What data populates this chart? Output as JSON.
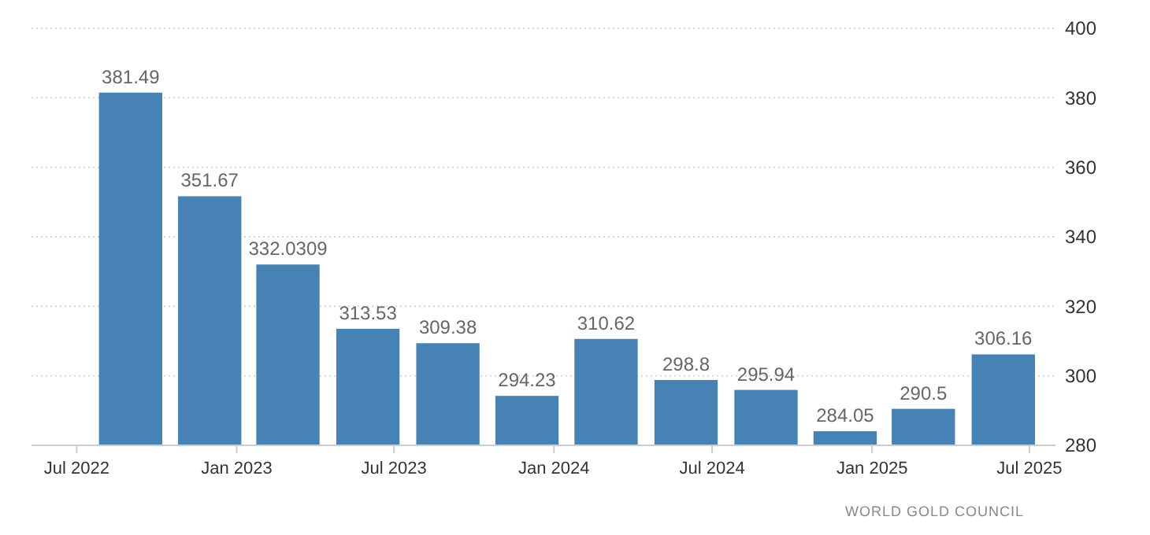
{
  "chart_data": {
    "type": "bar",
    "x": [
      "2022-09-01",
      "2022-12-01",
      "2023-03-01",
      "2023-06-01",
      "2023-09-01",
      "2023-12-01",
      "2024-03-01",
      "2024-06-01",
      "2024-09-01",
      "2024-12-01",
      "2025-03-01",
      "2025-06-01"
    ],
    "values": [
      381.49,
      351.67,
      332.0309,
      313.53,
      309.38,
      294.23,
      310.62,
      298.8,
      295.94,
      284.05,
      290.5,
      306.16
    ],
    "color": "#4682b4",
    "data_labels": true,
    "xlim": [
      "2022-05-10",
      "2025-07-31"
    ],
    "xticks": [
      {
        "value": "2022-07-01",
        "label": "Jul 2022"
      },
      {
        "value": "2023-01-01",
        "label": "Jan 2023"
      },
      {
        "value": "2023-07-01",
        "label": "Jul 2023"
      },
      {
        "value": "2024-01-01",
        "label": "Jan 2024"
      },
      {
        "value": "2024-07-01",
        "label": "Jul 2024"
      },
      {
        "value": "2025-01-01",
        "label": "Jan 2025"
      },
      {
        "value": "2025-07-01",
        "label": "Jul 2025"
      }
    ],
    "ylim": [
      280,
      400
    ],
    "yticks": [
      280,
      300,
      320,
      340,
      360,
      380,
      400
    ],
    "grid": "y",
    "annotations": [
      "WORLD GOLD COUNCIL"
    ]
  }
}
